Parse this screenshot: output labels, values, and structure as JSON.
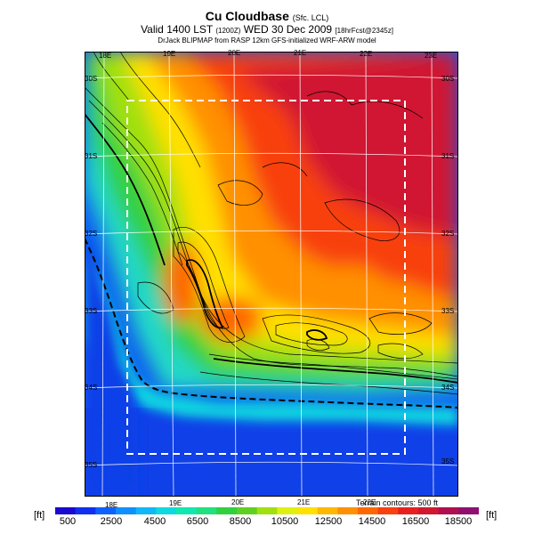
{
  "title": {
    "main": "Cu Cloudbase",
    "main_suffix": "(Sfc. LCL)",
    "valid_line": "Valid 1400 LST",
    "valid_code": "(1200Z)",
    "valid_date": "WED 30 Dec 2009",
    "run_info": "[18hrFcst@2345z]",
    "source_line": "DrJack BLIPMAP from RASP 12km GFS-initialized WRF-ARW model"
  },
  "map": {
    "top_lon_labels": [
      "18E",
      "19E",
      "20E",
      "21E",
      "22E",
      "23E"
    ],
    "bottom_lon_labels": [
      "18E",
      "19E",
      "20E",
      "21E",
      "22E"
    ],
    "left_lat_labels": [
      "30S",
      "31S",
      "32S",
      "33S",
      "34S",
      "35S"
    ],
    "right_lat_labels": [
      "30S",
      "31S",
      "32S",
      "33S",
      "34S",
      "35S"
    ],
    "terrain_note": "Terrain contours: 500 ft"
  },
  "colorbar": {
    "unit_left": "[ft]",
    "unit_right": "[ft]",
    "tick_labels": [
      "500",
      "2500",
      "4500",
      "6500",
      "8500",
      "10500",
      "12500",
      "14500",
      "16500",
      "18500"
    ],
    "colors": [
      "#1a0ad0",
      "#1030f0",
      "#1060ff",
      "#1090ff",
      "#10b8f8",
      "#10d8e0",
      "#10e8b0",
      "#20e080",
      "#30d040",
      "#60d020",
      "#a0e010",
      "#e0f010",
      "#ffe000",
      "#ffb800",
      "#ff9000",
      "#ff6800",
      "#f84010",
      "#e82020",
      "#d01830",
      "#b01050",
      "#901070"
    ]
  }
}
